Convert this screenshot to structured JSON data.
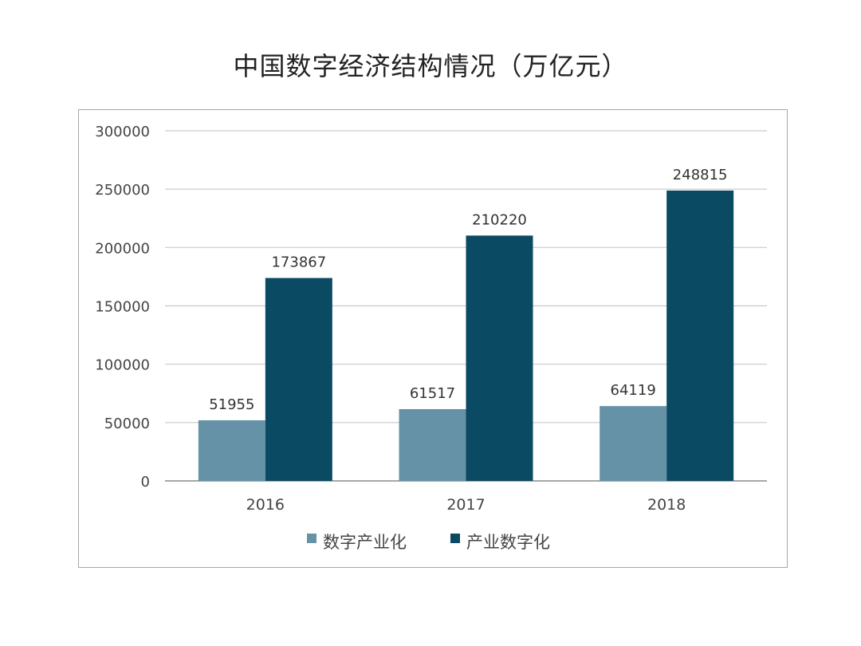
{
  "chart_data": {
    "type": "bar",
    "title": "中国数字经济结构情况（万亿元）",
    "categories": [
      "2016",
      "2017",
      "2018"
    ],
    "series": [
      {
        "name": "数字产业化",
        "values": [
          51955,
          61517,
          64119
        ],
        "color": "#6592a6"
      },
      {
        "name": "产业数字化",
        "values": [
          173867,
          210220,
          248815
        ],
        "color": "#0b4a63"
      }
    ],
    "ylim": [
      0,
      300000
    ],
    "yticks": [
      0,
      50000,
      100000,
      150000,
      200000,
      250000,
      300000
    ],
    "grid": true,
    "legend_position": "bottom",
    "xlabel": "",
    "ylabel": ""
  }
}
